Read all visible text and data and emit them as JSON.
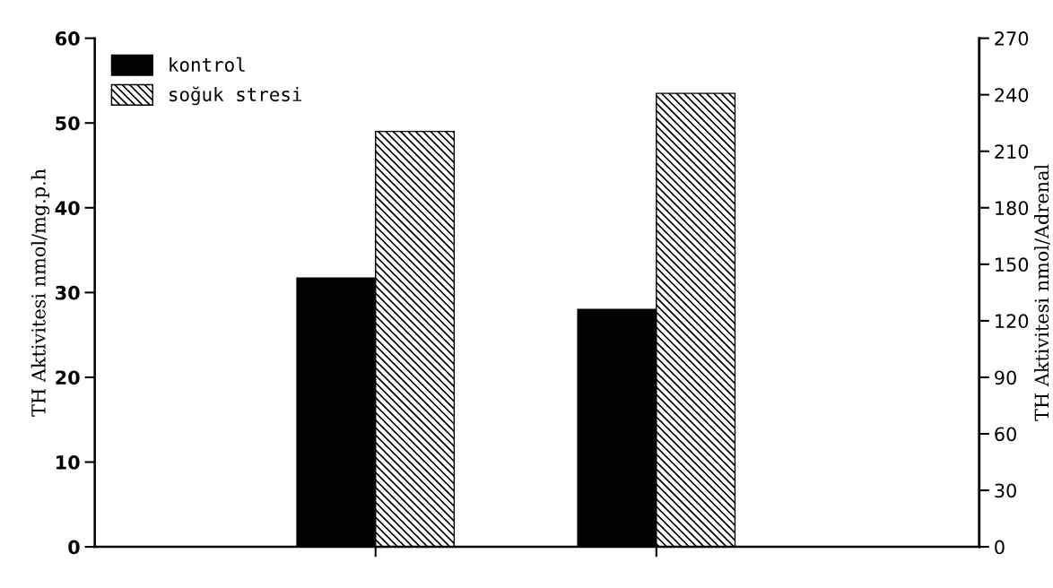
{
  "chart_data": {
    "type": "bar",
    "categories": [
      null,
      null
    ],
    "series": [
      {
        "name": "kontrol",
        "color": "#000000",
        "values": [
          31.7,
          28
        ]
      },
      {
        "name": "soğuk stresi",
        "color": "#000000",
        "values": [
          49,
          53.5
        ]
      }
    ],
    "ylabel": "TH Aktivitesi nmol/mg.p.h",
    "y2label": "TH Aktivitesi nmol/Adrenal",
    "ylim": [
      0,
      60
    ],
    "yticks": [
      0,
      10,
      20,
      30,
      40,
      50,
      60
    ],
    "y2lim": [
      0,
      270
    ],
    "y2ticks": [
      0,
      30,
      60,
      90,
      120,
      150,
      180,
      210,
      240,
      270
    ],
    "legend": "top left",
    "grid": false
  }
}
